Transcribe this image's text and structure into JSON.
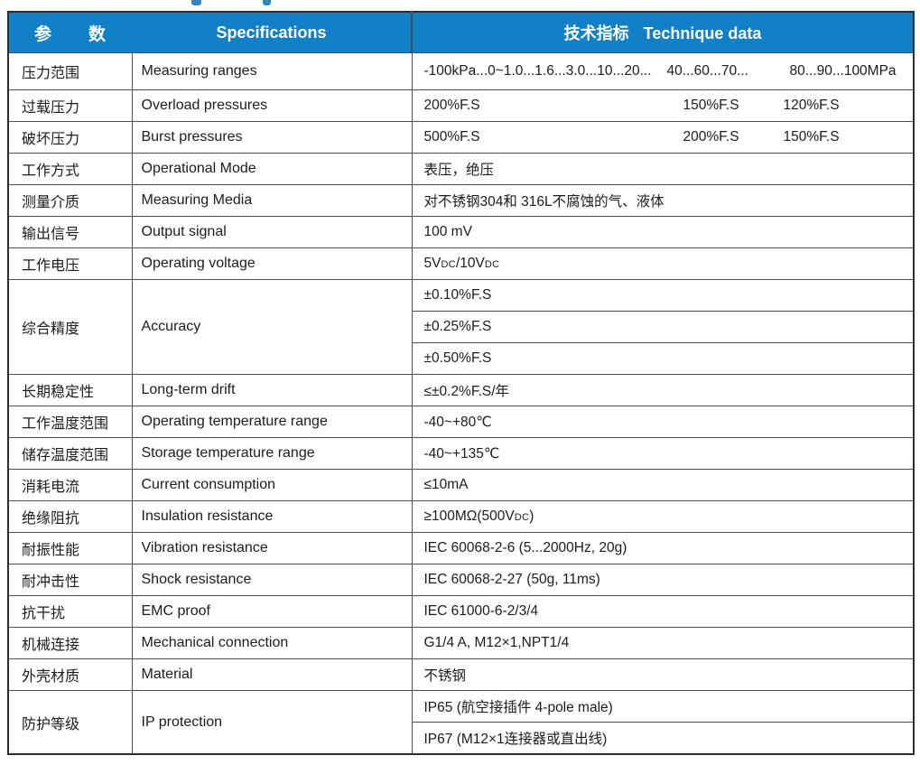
{
  "header": {
    "param": "参　　数",
    "specifications": "Specifications",
    "technique_zh": "技术指标",
    "technique_en": "Technique data"
  },
  "rows": [
    {
      "zh": "压力范围",
      "en": "Measuring ranges",
      "v1": "-100kPa...0~1.0...1.6...3.0...10...20...",
      "v2": "40...60...70...",
      "v3": "80...90...100MPa"
    },
    {
      "zh": "过载压力",
      "en": "Overload pressures",
      "v1": "200%F.S",
      "v2": "150%F.S",
      "v3": "120%F.S"
    },
    {
      "zh": "破坏压力",
      "en": "Burst pressures",
      "v1": "500%F.S",
      "v2": "200%F.S",
      "v3": "150%F.S"
    },
    {
      "zh": "工作方式",
      "en": "Operational Mode",
      "v": "表压，绝压"
    },
    {
      "zh": "测量介质",
      "en": "Measuring Media",
      "v": "对不锈钢304和 316L不腐蚀的气、液体"
    },
    {
      "zh": "输出信号",
      "en": "Output signal",
      "v": "100 mV"
    },
    {
      "zh": "工作电压",
      "en": "Operating voltage",
      "va": "5V",
      "dc1": "DC",
      "vb": "/10V",
      "dc2": "DC"
    },
    {
      "zh": "综合精度",
      "en": "Accuracy",
      "sub": [
        "±0.10%F.S",
        "±0.25%F.S",
        "±0.50%F.S"
      ]
    },
    {
      "zh": "长期稳定性",
      "en": "Long-term drift",
      "v": "≤±0.2%F.S/年"
    },
    {
      "zh": "工作温度范围",
      "en": "Operating temperature range",
      "v": "-40~+80℃"
    },
    {
      "zh": "储存温度范围",
      "en": "Storage temperature range",
      "v": "-40~+135℃"
    },
    {
      "zh": "消耗电流",
      "en": "Current consumption",
      "v": "≤10mA"
    },
    {
      "zh": "绝缘阻抗",
      "en": "Insulation resistance",
      "va": "≥100MΩ(500V",
      "dc": "DC",
      "vb": ")"
    },
    {
      "zh": "耐振性能",
      "en": "Vibration resistance",
      "v": "IEC 60068-2-6 (5...2000Hz, 20g)"
    },
    {
      "zh": "耐冲击性",
      "en": "Shock resistance",
      "v": "IEC 60068-2-27 (50g, 11ms)"
    },
    {
      "zh": "抗干扰",
      "en": "EMC proof",
      "v": "IEC 61000-6-2/3/4"
    },
    {
      "zh": "机械连接",
      "en": "Mechanical connection",
      "v": "G1/4 A, M12×1,NPT1/4"
    },
    {
      "zh": "外壳材质",
      "en": "Material",
      "v": "不锈钢"
    },
    {
      "zh": "防护等级",
      "en": "IP protection",
      "sub": [
        "IP65 (航空接插件 4-pole male)",
        "IP67 (M12×1连接器或直出线)"
      ]
    }
  ],
  "colors": {
    "header_bg": "#1180c7",
    "header_text": "#ffffff",
    "grid_line": "#4d4d4d",
    "outer_border": "#2e2e2e",
    "body_text": "#1c1c1c",
    "fragment_blue": "#2f86c0"
  }
}
